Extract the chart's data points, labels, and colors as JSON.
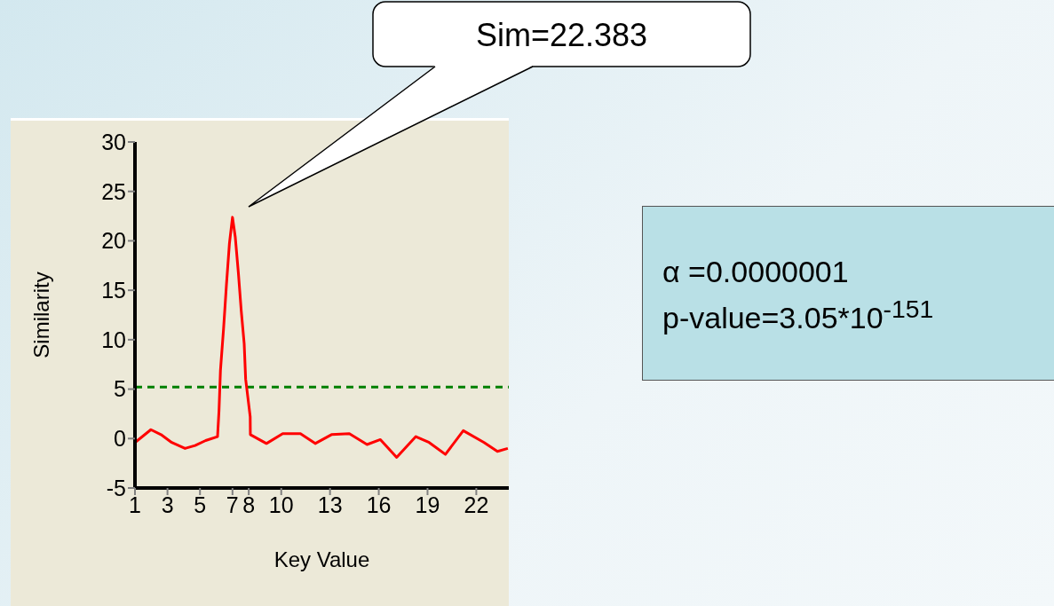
{
  "chart_data": {
    "type": "line",
    "xlabel": "Key Value",
    "ylabel": "Similarity",
    "xlim": [
      1,
      24
    ],
    "xticks": [
      1,
      3,
      5,
      7,
      8,
      10,
      13,
      16,
      19,
      22
    ],
    "ylim": [
      -5,
      30
    ],
    "yticks": [
      -5,
      0,
      5,
      10,
      15,
      20,
      25,
      30
    ],
    "grid": false,
    "legend": false,
    "marker": "none",
    "line_style": "solid",
    "series": [
      {
        "color": "#ff0000",
        "x": [
          1,
          1.98,
          2.6,
          3.26,
          4.08,
          4.7,
          5.35,
          6.08,
          6.17,
          6.26,
          6.45,
          6.63,
          6.81,
          7,
          7.17,
          7.36,
          7.54,
          7.72,
          7.81,
          8.09,
          8.1,
          9.09,
          10.09,
          11.18,
          12.09,
          13.09,
          14.19,
          15.28,
          16.1,
          17.1,
          18.28,
          19.1,
          20.1,
          21.2,
          22.48,
          23.3,
          23.94
        ],
        "values": [
          -0.4,
          0.9,
          0.4,
          -0.4,
          -1,
          -0.7,
          -0.2,
          0.2,
          2.8,
          6.9,
          11.1,
          15.6,
          19.7,
          22.383,
          20.4,
          16.8,
          12.9,
          9.6,
          6.0,
          2.2,
          0.4,
          -0.5,
          0.5,
          0.5,
          -0.5,
          0.4,
          0.5,
          -0.6,
          -0.1,
          -1.9,
          0.2,
          -0.4,
          -1.6,
          0.8,
          -0.4,
          -1.3,
          -1
        ]
      }
    ],
    "ref_lines": [
      {
        "axis": "y",
        "value": 5.2,
        "color": "#008000",
        "line_style": "dashed"
      }
    ],
    "annotations": [
      "Sim=22.383",
      "α =0.0000001",
      "p-value=3.05*10$^{-151}$"
    ]
  }
}
